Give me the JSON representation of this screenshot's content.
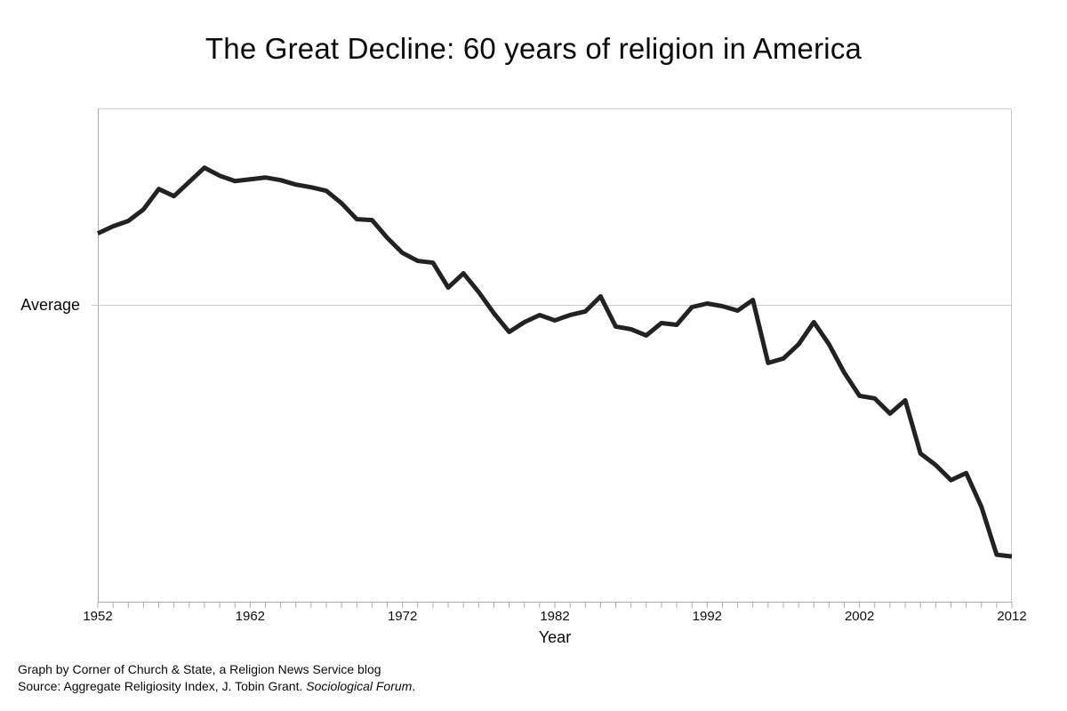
{
  "title": "The Great Decline: 60 years of religion in America",
  "chart_data": {
    "type": "line",
    "title": "The Great Decline: 60 years of religion in America",
    "xlabel": "Year",
    "ylabel_annotation": "Average",
    "xlim": [
      1952,
      2012
    ],
    "ylim": [
      -3.34,
      2.21
    ],
    "average_value": 0,
    "x_tick_labels": [
      "1952",
      "1962",
      "1972",
      "1982",
      "1992",
      "2002",
      "2012"
    ],
    "x_major_tick_interval_years": 10,
    "x_minor_tick_interval_years": 1,
    "grid": "single horizontal reference line at average",
    "legend": "none",
    "series": [
      {
        "name": "Aggregate Religiosity Index",
        "x_start_year": 1952,
        "x_step_years": 1,
        "values": [
          0.81,
          0.89,
          0.95,
          1.08,
          1.31,
          1.23,
          1.39,
          1.55,
          1.46,
          1.4,
          1.42,
          1.44,
          1.41,
          1.36,
          1.33,
          1.29,
          1.15,
          0.97,
          0.96,
          0.76,
          0.59,
          0.5,
          0.48,
          0.2,
          0.36,
          0.15,
          -0.09,
          -0.3,
          -0.19,
          -0.11,
          -0.17,
          -0.11,
          -0.07,
          0.1,
          -0.24,
          -0.27,
          -0.34,
          -0.2,
          -0.22,
          -0.02,
          0.02,
          -0.01,
          -0.06,
          0.06,
          -0.65,
          -0.6,
          -0.44,
          -0.19,
          -0.44,
          -0.76,
          -1.02,
          -1.05,
          -1.22,
          -1.07,
          -1.67,
          -1.8,
          -1.97,
          -1.89,
          -2.27,
          -2.81,
          -2.83
        ]
      }
    ]
  },
  "footer": {
    "credit_line1": "Graph by Corner of Church & State, a Religion News Service blog",
    "source_prefix": "Source: Aggregate Religiosity Index, J. Tobin Grant. ",
    "source_italic": "Sociological Forum",
    "source_suffix": "."
  },
  "colors": {
    "line": "#232122",
    "axis": "#ababab",
    "tick": "#ababab",
    "gridline": "#c9c9c9",
    "border": "#cfcfcf",
    "text": "#0a0a0a"
  }
}
